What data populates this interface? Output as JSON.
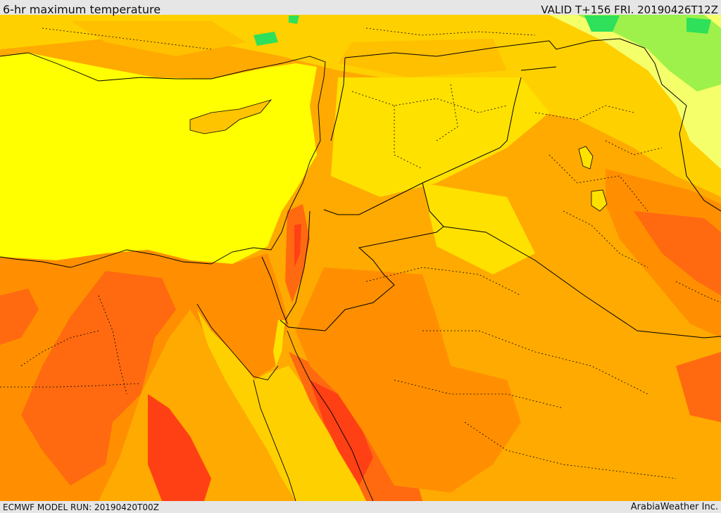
{
  "header": {
    "title": "6-hr maximum temperature",
    "valid_time": "VALID T+156 FRI. 20190426T12Z"
  },
  "footer": {
    "model_run": "ECMWF MODEL RUN: 20190420T00Z",
    "credit": "ArabiaWeather Inc."
  },
  "map": {
    "region": "Eastern Mediterranean and Middle East",
    "colors": {
      "coolest_green": "#2ee05a",
      "light_green": "#9ef04a",
      "pale_yellow": "#f5ff6a",
      "yellow": "#ffff00",
      "gold": "#ffe100",
      "light_orange": "#ffc400",
      "orange": "#ffaa00",
      "dark_orange": "#ff8f00",
      "red_orange": "#ff6a10",
      "red": "#ff4015",
      "border": "#000000"
    }
  }
}
